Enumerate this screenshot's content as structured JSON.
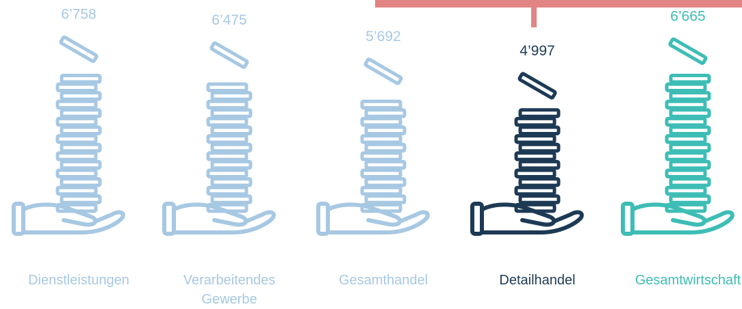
{
  "chart_data": {
    "type": "pictogram",
    "categories": [
      "Dienstleistungen",
      "Verarbeitendes\nGewerbe",
      "Gesamthandel",
      "Detailhandel",
      "Gesamtwirtschaft"
    ],
    "values": [
      6758,
      6475,
      5692,
      4997,
      6665
    ],
    "value_labels": [
      "6’758",
      "6’475",
      "5’692",
      "4’997",
      "6’665"
    ],
    "colors": [
      "#a7c8e3",
      "#a7c8e3",
      "#a7c8e3",
      "#1d3a55",
      "#3dbdb5"
    ]
  }
}
